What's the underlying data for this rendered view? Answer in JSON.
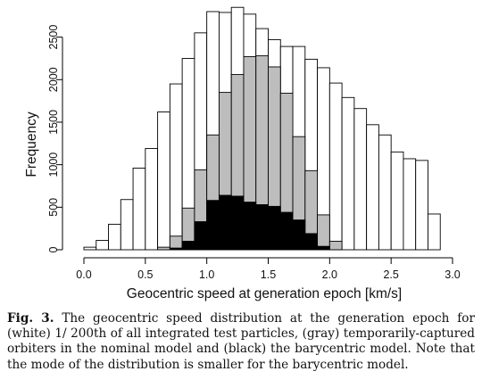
{
  "chart_data": {
    "type": "bar",
    "xlabel": "Geocentric speed at generation epoch [km/s]",
    "ylabel": "Frequency",
    "xlim": [
      0.0,
      3.0
    ],
    "ylim": [
      0,
      2800
    ],
    "x_ticks": [
      "0.0",
      "0.5",
      "1.0",
      "1.5",
      "2.0",
      "2.5",
      "3.0"
    ],
    "y_ticks": [
      "0",
      "500",
      "1000",
      "1500",
      "2000",
      "2500"
    ],
    "bin_width": 0.1,
    "bin_starts": [
      0.0,
      0.1,
      0.2,
      0.3,
      0.4,
      0.5,
      0.6,
      0.7,
      0.8,
      0.9,
      1.0,
      1.1,
      1.2,
      1.3,
      1.4,
      1.5,
      1.6,
      1.7,
      1.8,
      1.9,
      2.0,
      2.1,
      2.2,
      2.3,
      2.4,
      2.5,
      2.6,
      2.7,
      2.8
    ],
    "series": [
      {
        "color": "#ffffff",
        "values": [
          30,
          110,
          300,
          590,
          960,
          1190,
          1620,
          1950,
          2250,
          2550,
          2800,
          2790,
          2850,
          2770,
          2600,
          2470,
          2390,
          2390,
          2240,
          2140,
          1960,
          1790,
          1660,
          1470,
          1350,
          1150,
          1070,
          1050,
          420
        ]
      },
      {
        "color": "#bdbdbd",
        "values": [
          0,
          0,
          0,
          0,
          0,
          0,
          30,
          160,
          490,
          940,
          1350,
          1850,
          2060,
          2270,
          2280,
          2150,
          1840,
          1330,
          930,
          410,
          100,
          0,
          0,
          0,
          0,
          0,
          0,
          0,
          0
        ]
      },
      {
        "color": "#000000",
        "values": [
          0,
          0,
          0,
          0,
          0,
          0,
          0,
          20,
          100,
          330,
          580,
          640,
          630,
          560,
          530,
          510,
          440,
          350,
          190,
          40,
          0,
          0,
          0,
          0,
          0,
          0,
          0,
          0,
          0
        ]
      }
    ]
  },
  "caption": {
    "label": "Fig. 3.",
    "text": " The geocentric speed distribution at the generation epoch for (white) 1/ 200th of all integrated test particles, (gray) temporarily-captured orbiters in the nominal model and (black) the barycentric model. Note that the mode of the distribution is smaller for the barycentric model."
  }
}
